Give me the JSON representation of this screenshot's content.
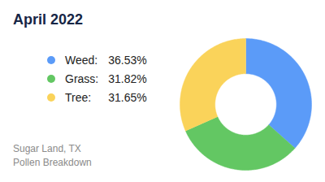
{
  "chart_data": {
    "type": "pie",
    "title": "April 2022",
    "caption": [
      "Sugar Land, TX",
      "Pollen Breakdown"
    ],
    "categories": [
      "Weed:",
      "Grass:",
      "Tree:"
    ],
    "values": [
      36.53,
      31.82,
      31.65
    ],
    "value_labels": [
      "36.53%",
      "31.82%",
      "31.65%"
    ],
    "colors": [
      "#5b9bf8",
      "#63c763",
      "#fad35a"
    ],
    "legend": "left"
  }
}
